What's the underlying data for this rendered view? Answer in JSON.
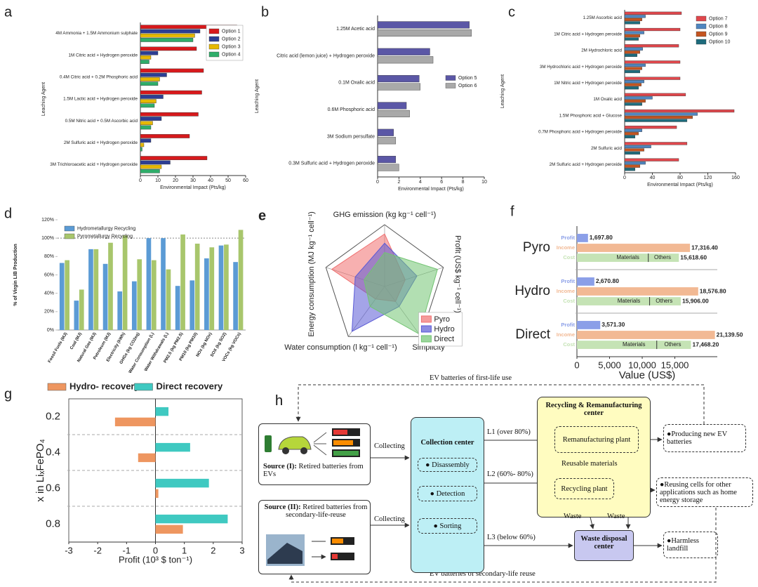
{
  "chart_data": [
    {
      "type": "hbar",
      "panel": "a",
      "xlabel": "Environmental Impact (Pts/kg)",
      "ylabel": "Leaching Agent",
      "categories": [
        "4M Ammonia + 1.5M Ammonium sulphate",
        "1M Citric acid + Hydrogen peroxide",
        "0.4M Citric acid + 0.2M Phosphoric acid",
        "1.5M Lactic acid + Hydrogen peroxide",
        "0.5M Nitric acid + 0.5M Ascorbic acid",
        "2M Sulfuric acid + Hydrogen peroxide",
        "3M Trichloroacetic acid + Hydrogen peroxide"
      ],
      "series": [
        {
          "name": "Option 1",
          "color": "#d7191c",
          "values": [
            55,
            32,
            36,
            35,
            33,
            28,
            38
          ]
        },
        {
          "name": "Option 2",
          "color": "#2c3e94",
          "values": [
            34,
            10,
            15,
            13,
            12,
            6,
            17
          ]
        },
        {
          "name": "Option 3",
          "color": "#e6b800",
          "values": [
            31,
            6,
            11,
            9,
            7,
            2,
            12
          ]
        },
        {
          "name": "Option 4",
          "color": "#2fae6a",
          "values": [
            30,
            5,
            10,
            8,
            6,
            1,
            11
          ]
        }
      ],
      "xlim": [
        0,
        60
      ],
      "xticks": [
        0,
        10,
        20,
        30,
        40,
        50,
        60
      ],
      "legend": "upper right"
    },
    {
      "type": "hbar",
      "panel": "b",
      "xlabel": "Environmental Impact (Pts/kg)",
      "ylabel": "Leaching Agent",
      "categories": [
        "1.25M Acetic acid",
        "Citric acid (lemon juice) + Hydrogen peroxide",
        "0.1M Oxalic acid",
        "0.6M Phosphoric acid",
        "3M Sodium persulfate",
        "0.3M Sulfuric acid + Hydrogen peroxide"
      ],
      "series": [
        {
          "name": "Option 5",
          "color": "#5b57a6",
          "values": [
            8.6,
            4.9,
            3.9,
            2.7,
            1.5,
            1.7
          ]
        },
        {
          "name": "Option 6",
          "color": "#a9a9a9",
          "values": [
            8.8,
            5.2,
            4.0,
            3.0,
            1.7,
            2.0
          ]
        }
      ],
      "xlim": [
        0,
        10
      ],
      "xticks": [
        0,
        2,
        4,
        6,
        8,
        10
      ],
      "legend": "center right"
    },
    {
      "type": "hbar",
      "panel": "c",
      "xlabel": "Environmental Impact (Pts/kg)",
      "ylabel": "Leaching Agent",
      "categories": [
        "1.25M Ascorbic acid",
        "1M Citric acid + Hydrogen peroxide",
        "2M Hydrochloric acid",
        "3M Hydrochloric acid + Hydrogen peroxide",
        "1M Nitric acid + Hydrogen peroxide",
        "1M Oxalic acid",
        "1.5M Phosphoric acid + Glucose",
        "0.7M Phosphoric acid + Hydrogen peroxide",
        "2M Sulfuric acid",
        "2M Sulfuric acid + Hydrogen peroxide"
      ],
      "series": [
        {
          "name": "Option 7",
          "color": "#e0474c",
          "values": [
            82,
            80,
            78,
            80,
            80,
            88,
            158,
            75,
            90,
            78
          ]
        },
        {
          "name": "Option 8",
          "color": "#4f86c0",
          "values": [
            30,
            28,
            26,
            30,
            28,
            40,
            105,
            25,
            38,
            30
          ]
        },
        {
          "name": "Option 9",
          "color": "#c4541f",
          "values": [
            25,
            22,
            22,
            25,
            24,
            30,
            98,
            20,
            28,
            22
          ]
        },
        {
          "name": "Option 10",
          "color": "#1d6b7c",
          "values": [
            22,
            20,
            18,
            22,
            20,
            25,
            90,
            15,
            22,
            15
          ]
        }
      ],
      "xlim": [
        0,
        160
      ],
      "xticks": [
        0,
        40,
        80,
        120,
        160
      ],
      "legend": "upper right"
    },
    {
      "type": "bar",
      "panel": "d",
      "ylabel": "% of Virgin LIB Production",
      "categories": [
        "Fossil Fuels (MJ)",
        "Coal (MJ)",
        "Natural Gas (MJ)",
        "Petroleum (MJ)",
        "Electricity (kWh)",
        "GHGs (kg CO2eq)",
        "Water Consumption (L)",
        "Water Withdrawals (L)",
        "PM2.5 (kg PM2.5)",
        "PM10 (kg PM10)",
        "NOx (kg NOx)",
        "SOX (kg SO2)",
        "VOCs (kg VOCs)"
      ],
      "series": [
        {
          "name": "Hydrometallurgy Recycling",
          "color": "#5b9bd5",
          "values": [
            73,
            32,
            88,
            72,
            42,
            53,
            100,
            100,
            48,
            54,
            78,
            92,
            74
          ]
        },
        {
          "name": "Pyrometallurgy Recycling",
          "color": "#a8c66c",
          "values": [
            76,
            44,
            88,
            95,
            103,
            77,
            76,
            66,
            104,
            94,
            90,
            93,
            109
          ]
        }
      ],
      "ylim": [
        0,
        120
      ],
      "yticks": [
        {
          "value": 0,
          "label": "0%"
        },
        {
          "value": 20,
          "label": "20%"
        },
        {
          "value": 40,
          "label": "40%"
        },
        {
          "value": 60,
          "label": "60%"
        },
        {
          "value": 80,
          "label": "80%"
        },
        {
          "value": 100,
          "label": "100%"
        },
        {
          "value": 120,
          "label": "120%"
        }
      ],
      "reference_line": 100,
      "legend": "upper left"
    },
    {
      "type": "radar",
      "panel": "e",
      "axes": [
        "GHG emission (kg kg⁻¹ cell⁻¹)",
        "Profit (US$ kg⁻¹ cell⁻¹)",
        "Simplicity",
        "Water consumption (l kg⁻¹ cell⁻¹)",
        "Energy consumption (MJ kg⁻¹ cell⁻¹)"
      ],
      "series": [
        {
          "name": "Pyro",
          "color": "#f07070",
          "values": [
            0.85,
            0.35,
            0.3,
            0.25,
            0.9
          ]
        },
        {
          "name": "Hydro",
          "color": "#5a5ad6",
          "values": [
            0.7,
            0.55,
            0.4,
            0.9,
            0.5
          ]
        },
        {
          "name": "Direct",
          "color": "#72c472",
          "values": [
            0.55,
            0.9,
            0.95,
            0.4,
            0.35
          ]
        }
      ],
      "rlim": [
        0,
        1
      ],
      "legend": "lower right"
    },
    {
      "type": "hbar",
      "panel": "f",
      "xlabel": "Value (US$)",
      "categories": [
        "Pyro",
        "Hydro",
        "Direct"
      ],
      "series": [
        {
          "name": "Profit",
          "color": "#8b9fe8",
          "values": [
            1697.8,
            2670.8,
            3571.3
          ],
          "value_labels": [
            "1,697.80",
            "2,670.80",
            "3,571.30"
          ]
        },
        {
          "name": "Income",
          "color": "#f2b994",
          "values": [
            17316.4,
            18576.8,
            21139.5
          ],
          "value_labels": [
            "17,316.40",
            "18,576.80",
            "21,139.50"
          ]
        },
        {
          "name": "Cost",
          "color": "#c5e3b5",
          "values": [
            15618.6,
            15906.0,
            17468.2
          ],
          "value_labels": [
            "15,618.60",
            "15,906.00",
            "17,468.20"
          ]
        }
      ],
      "annotations": [
        "Materials",
        "Others"
      ],
      "xlim": [
        0,
        21500
      ],
      "xticks": [
        0,
        {
          "value": 5000,
          "label": "5,000"
        },
        {
          "value": 10000,
          "label": "10,000"
        },
        {
          "value": 15000,
          "label": "15,000"
        }
      ]
    },
    {
      "type": "hbar",
      "panel": "g",
      "xlabel": "Profit (10³ $ ton⁻¹)",
      "ylabel": "x in LiₓFePO₄",
      "categories": [
        "0.2",
        "0.4",
        "0.6",
        "0.8"
      ],
      "series": [
        {
          "name": "Hydro- recovery",
          "color": "#ee9660",
          "values": [
            -1.4,
            -0.6,
            0.1,
            0.95
          ]
        },
        {
          "name": "Direct recovery",
          "color": "#3fc9c1",
          "values": [
            0.45,
            1.2,
            1.85,
            2.5
          ]
        }
      ],
      "xlim": [
        -3,
        3
      ],
      "xticks": [
        -3,
        -2,
        -1,
        0,
        1,
        2,
        3
      ],
      "legend": "top"
    }
  ],
  "diagram": {
    "panel": "h",
    "labels": {
      "first_life": "EV batteries of first-life use",
      "second_life": "EV batteries of secondary-life reuse",
      "collecting_1": "Collecting",
      "collecting_2": "Collecting",
      "l1": "L1 (over 80%)",
      "l2": "L2 (60%- 80%)",
      "l3": "L3 (below 60%)",
      "reusable": "Reusable materials",
      "waste_1": "Waste",
      "waste_2": "Waste"
    },
    "nodes": {
      "source_1": {
        "title": "Source (I):",
        "text": "Retired batteries from EVs"
      },
      "source_2": {
        "title": "Source (II):",
        "text": "Retired batteries from secondary-life-reuse"
      },
      "collection": {
        "title": "Collection center",
        "steps": [
          "Disassembly",
          "Detection",
          "Sorting"
        ]
      },
      "recycling_center": {
        "title": "Recycling & Remanufacturing center",
        "remanufacturing": "Remanufacturing plant",
        "recycling": "Recycling plant"
      },
      "waste_disposal": {
        "title": "Waste disposal center"
      },
      "outcomes": [
        "Producing new EV batteries",
        "Reusing cells for other applications such as home energy storage",
        "Harmless landfill"
      ]
    }
  }
}
